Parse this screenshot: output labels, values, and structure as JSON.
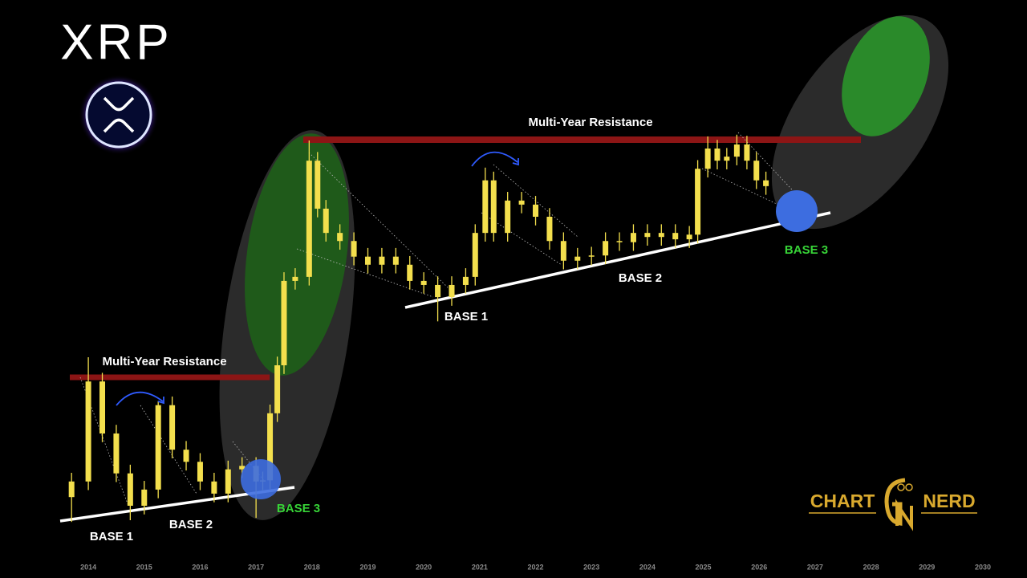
{
  "chart_data": {
    "type": "candlestick",
    "title": "XRP",
    "color": "#f3df4d",
    "xlim": [
      2012.42,
      2030.79
    ],
    "ylim": [
      0,
      100
    ],
    "xticks": [
      2014,
      2015,
      2016,
      2017,
      2018,
      2019,
      2020,
      2021,
      2022,
      2023,
      2024,
      2025,
      2026,
      2027,
      2028,
      2029,
      2030
    ],
    "x": [
      2013.7,
      2014.0,
      2014.25,
      2014.5,
      2014.75,
      2015.0,
      2015.25,
      2015.5,
      2015.75,
      2016.0,
      2016.25,
      2016.5,
      2016.75,
      2017.0,
      2017.12,
      2017.25,
      2017.38,
      2017.5,
      2017.7,
      2017.95,
      2018.1,
      2018.25,
      2018.5,
      2018.75,
      2019.0,
      2019.25,
      2019.5,
      2019.75,
      2020.0,
      2020.25,
      2020.5,
      2020.75,
      2020.92,
      2021.1,
      2021.25,
      2021.5,
      2021.75,
      2022.0,
      2022.25,
      2022.5,
      2022.75,
      2023.0,
      2023.25,
      2023.5,
      2023.75,
      2024.0,
      2024.25,
      2024.5,
      2024.75,
      2024.9,
      2025.08,
      2025.25,
      2025.42,
      2025.6,
      2025.78,
      2025.95,
      2026.12
    ],
    "open": [
      14.0,
      16.7,
      34.0,
      25.0,
      18.1,
      12.5,
      15.3,
      29.9,
      22.2,
      20.1,
      16.7,
      14.6,
      18.8,
      19.4,
      16.7,
      16.9,
      28.5,
      36.8,
      51.4,
      52.1,
      72.2,
      63.9,
      59.7,
      58.3,
      55.6,
      54.2,
      55.6,
      54.2,
      51.4,
      50.7,
      48.6,
      50.7,
      52.1,
      59.7,
      68.8,
      59.7,
      65.3,
      64.6,
      62.5,
      58.3,
      54.9,
      55.6,
      55.8,
      58.3,
      58.1,
      59.7,
      59.0,
      59.7,
      58.6,
      59.4,
      70.8,
      74.3,
      72.2,
      72.9,
      75.0,
      72.2,
      68.8
    ],
    "high": [
      18.2,
      38.2,
      35.5,
      26.5,
      19.6,
      16.8,
      30.6,
      31.4,
      23.7,
      21.6,
      18.2,
      20.3,
      20.9,
      20.9,
      18.4,
      30.0,
      38.3,
      52.9,
      53.6,
      75.7,
      73.7,
      65.4,
      61.2,
      59.8,
      57.1,
      57.1,
      57.1,
      55.7,
      52.9,
      52.2,
      52.2,
      53.6,
      61.2,
      71.0,
      70.3,
      66.8,
      66.8,
      66.1,
      64.0,
      59.8,
      57.1,
      57.3,
      59.8,
      59.8,
      61.2,
      61.2,
      61.2,
      61.2,
      60.9,
      72.3,
      76.4,
      75.8,
      74.4,
      76.7,
      76.5,
      73.7,
      70.3
    ],
    "low": [
      9.7,
      15.2,
      23.5,
      16.6,
      10.0,
      11.0,
      13.8,
      20.7,
      18.6,
      15.2,
      13.1,
      13.1,
      17.3,
      10.4,
      15.2,
      15.4,
      27.0,
      35.3,
      49.9,
      50.6,
      62.4,
      58.2,
      56.8,
      54.1,
      52.7,
      52.7,
      52.7,
      49.9,
      49.2,
      44.4,
      47.1,
      49.2,
      50.6,
      58.2,
      58.2,
      58.2,
      63.1,
      61.0,
      56.8,
      53.4,
      53.4,
      54.1,
      54.3,
      56.6,
      56.6,
      57.5,
      57.5,
      57.1,
      57.1,
      57.9,
      69.3,
      70.7,
      70.7,
      71.4,
      70.7,
      67.3,
      66.3
    ],
    "close": [
      16.7,
      34.0,
      25.0,
      18.1,
      12.5,
      15.3,
      29.9,
      22.2,
      20.1,
      16.7,
      14.6,
      18.8,
      19.4,
      16.7,
      16.9,
      28.5,
      36.8,
      51.4,
      52.1,
      72.2,
      63.9,
      59.7,
      58.3,
      55.6,
      54.2,
      55.6,
      54.2,
      51.4,
      50.7,
      48.6,
      50.7,
      52.1,
      59.7,
      68.8,
      59.7,
      65.3,
      64.6,
      62.5,
      58.3,
      54.9,
      55.6,
      55.8,
      58.3,
      58.1,
      59.7,
      59.0,
      59.7,
      58.6,
      59.4,
      70.8,
      74.3,
      72.2,
      72.9,
      75.0,
      72.2,
      68.8,
      67.8
    ],
    "annotations": [
      "Multi-Year Resistance",
      "BASE 1",
      "BASE 2",
      "BASE 3",
      "Multi-Year Resistance",
      "BASE 1",
      "BASE 2",
      "BASE 3"
    ],
    "logo": [
      "CHART",
      "NERD"
    ]
  }
}
